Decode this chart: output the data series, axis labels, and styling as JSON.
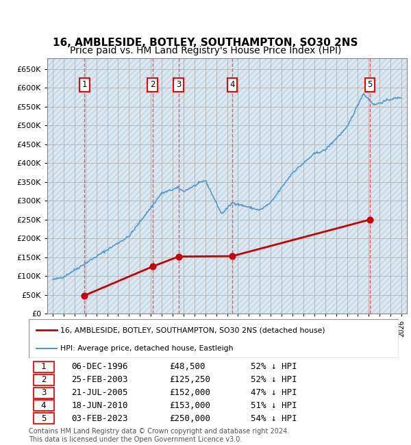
{
  "title": "16, AMBLESIDE, BOTLEY, SOUTHAMPTON, SO30 2NS",
  "subtitle": "Price paid vs. HM Land Registry's House Price Index (HPI)",
  "xlim": [
    1993.5,
    2026.5
  ],
  "ylim": [
    0,
    680000
  ],
  "yticks": [
    0,
    50000,
    100000,
    150000,
    200000,
    250000,
    300000,
    350000,
    400000,
    450000,
    500000,
    550000,
    600000,
    650000
  ],
  "ytick_labels": [
    "£0",
    "£50K",
    "£100K",
    "£150K",
    "£200K",
    "£250K",
    "£300K",
    "£350K",
    "£400K",
    "£450K",
    "£500K",
    "£550K",
    "£600K",
    "£650K"
  ],
  "sale_dates_x": [
    1996.92,
    2003.15,
    2005.55,
    2010.46,
    2023.09
  ],
  "sale_prices_y": [
    48500,
    125250,
    152000,
    153000,
    250000
  ],
  "sale_labels": [
    "1",
    "2",
    "3",
    "4",
    "5"
  ],
  "sale_color": "#cc0000",
  "hpi_line_color": "#5599cc",
  "red_dashed_color": "#ff5555",
  "legend_line1": "16, AMBLESIDE, BOTLEY, SOUTHAMPTON, SO30 2NS (detached house)",
  "legend_line2": "HPI: Average price, detached house, Eastleigh",
  "table_data": [
    [
      "1",
      "06-DEC-1996",
      "£48,500",
      "52% ↓ HPI"
    ],
    [
      "2",
      "25-FEB-2003",
      "£125,250",
      "52% ↓ HPI"
    ],
    [
      "3",
      "21-JUL-2005",
      "£152,000",
      "47% ↓ HPI"
    ],
    [
      "4",
      "18-JUN-2010",
      "£153,000",
      "51% ↓ HPI"
    ],
    [
      "5",
      "03-FEB-2023",
      "£250,000",
      "54% ↓ HPI"
    ]
  ],
  "footer": "Contains HM Land Registry data © Crown copyright and database right 2024.\nThis data is licensed under the Open Government Licence v3.0.",
  "title_fontsize": 11,
  "subtitle_fontsize": 10,
  "bg_color": "#dce8f0",
  "hatch_color": "#c0d4e4"
}
